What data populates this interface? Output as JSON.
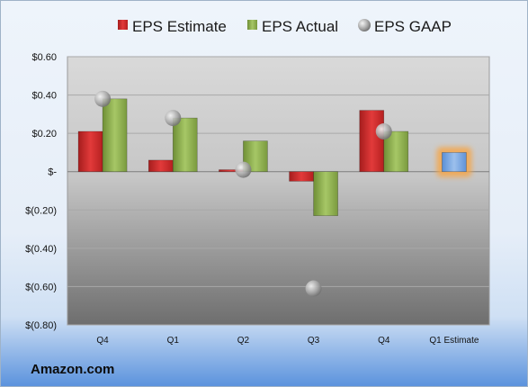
{
  "brand": "Amazon.com",
  "colors": {
    "estimate": "#cc2a2a",
    "actual": "#8db04e",
    "gaap": "#a8a8a8",
    "highlight_bar": "#7eaae0",
    "highlight_glow": "#f5a64a"
  },
  "chart_data": {
    "type": "bar",
    "categories": [
      "Q4",
      "Q1",
      "Q2",
      "Q3",
      "Q4",
      "Q1 Estimate"
    ],
    "series": [
      {
        "name": "EPS Estimate",
        "kind": "bar",
        "values": [
          0.21,
          0.06,
          0.01,
          -0.05,
          0.32,
          null
        ]
      },
      {
        "name": "EPS Actual",
        "kind": "bar",
        "values": [
          0.38,
          0.28,
          0.16,
          -0.23,
          0.21,
          0.1
        ]
      },
      {
        "name": "EPS GAAP",
        "kind": "scatter",
        "values": [
          0.38,
          0.28,
          0.01,
          -0.61,
          0.21,
          null
        ]
      }
    ],
    "highlighted": {
      "category": "Q1 Estimate",
      "value": 0.1
    },
    "y_tick_labels": [
      "$0.60",
      "$0.40",
      "$0.20",
      "$-",
      "$(0.20)",
      "$(0.40)",
      "$(0.60)",
      "$(0.80)"
    ],
    "ylim": [
      -0.8,
      0.6
    ],
    "grid": true,
    "legend_position": "top"
  }
}
